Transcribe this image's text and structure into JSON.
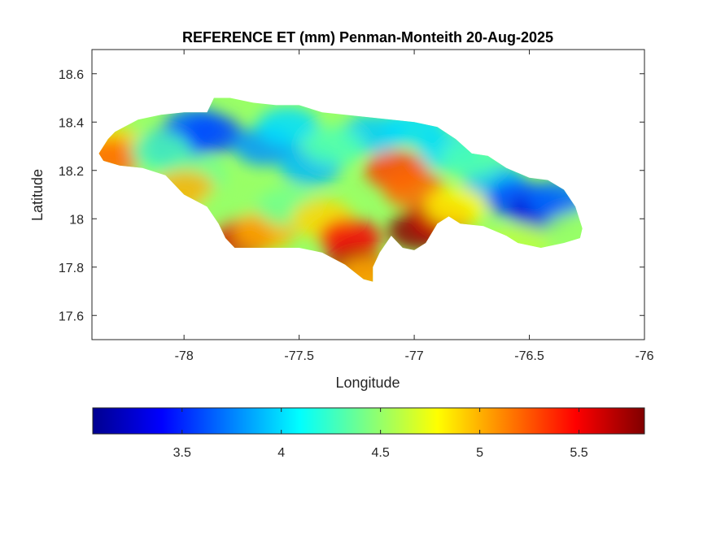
{
  "chart_data": {
    "type": "heatmap",
    "title": "REFERENCE ET (mm) Penman-Monteith 20-Aug-2025",
    "xlabel": "Longitude",
    "ylabel": "Latitude",
    "xlim": [
      -78.4,
      -76
    ],
    "ylim": [
      17.5,
      18.7
    ],
    "xticks": [
      -78,
      -77.5,
      -77,
      -76.5,
      -76
    ],
    "yticks": [
      17.6,
      17.8,
      18,
      18.2,
      18.4,
      18.6
    ],
    "colorbar": {
      "colormap": "jet",
      "clim": [
        3.05,
        5.83
      ],
      "ticks": [
        3.5,
        4,
        4.5,
        5,
        5.5
      ],
      "placement": "bottom"
    },
    "field_points": [
      {
        "lon": -77.95,
        "lat": 18.38,
        "value": 3.7
      },
      {
        "lon": -78.05,
        "lat": 18.3,
        "value": 3.6
      },
      {
        "lon": -77.88,
        "lat": 18.35,
        "value": 3.6
      },
      {
        "lon": -77.65,
        "lat": 18.3,
        "value": 3.8
      },
      {
        "lon": -77.45,
        "lat": 18.22,
        "value": 3.9
      },
      {
        "lon": -77.55,
        "lat": 18.38,
        "value": 4.0
      },
      {
        "lon": -77.18,
        "lat": 18.35,
        "value": 3.95
      },
      {
        "lon": -77.0,
        "lat": 18.38,
        "value": 4.0
      },
      {
        "lon": -76.85,
        "lat": 18.28,
        "value": 4.0
      },
      {
        "lon": -76.65,
        "lat": 18.15,
        "value": 3.9
      },
      {
        "lon": -76.55,
        "lat": 18.08,
        "value": 3.6
      },
      {
        "lon": -76.45,
        "lat": 18.03,
        "value": 3.3
      },
      {
        "lon": -76.38,
        "lat": 18.08,
        "value": 3.7
      },
      {
        "lon": -76.3,
        "lat": 17.95,
        "value": 4.5
      },
      {
        "lon": -76.55,
        "lat": 17.9,
        "value": 4.6
      },
      {
        "lon": -78.3,
        "lat": 18.3,
        "value": 4.9
      },
      {
        "lon": -78.32,
        "lat": 18.25,
        "value": 5.2
      },
      {
        "lon": -78.1,
        "lat": 18.28,
        "value": 4.3
      },
      {
        "lon": -77.95,
        "lat": 18.18,
        "value": 4.4
      },
      {
        "lon": -78.0,
        "lat": 18.12,
        "value": 5.0
      },
      {
        "lon": -77.8,
        "lat": 18.05,
        "value": 4.5
      },
      {
        "lon": -77.75,
        "lat": 17.92,
        "value": 5.6
      },
      {
        "lon": -77.65,
        "lat": 17.95,
        "value": 5.0
      },
      {
        "lon": -77.55,
        "lat": 18.05,
        "value": 4.4
      },
      {
        "lon": -77.4,
        "lat": 18.0,
        "value": 4.9
      },
      {
        "lon": -77.28,
        "lat": 17.92,
        "value": 5.5
      },
      {
        "lon": -77.25,
        "lat": 17.8,
        "value": 5.7
      },
      {
        "lon": -77.2,
        "lat": 17.76,
        "value": 5.0
      },
      {
        "lon": -77.08,
        "lat": 18.2,
        "value": 5.3
      },
      {
        "lon": -77.0,
        "lat": 18.12,
        "value": 5.2
      },
      {
        "lon": -76.98,
        "lat": 17.95,
        "value": 5.8
      },
      {
        "lon": -76.88,
        "lat": 18.0,
        "value": 5.6
      },
      {
        "lon": -76.82,
        "lat": 18.05,
        "value": 4.8
      },
      {
        "lon": -77.35,
        "lat": 18.3,
        "value": 4.3
      },
      {
        "lon": -76.75,
        "lat": 18.25,
        "value": 4.3
      }
    ]
  }
}
